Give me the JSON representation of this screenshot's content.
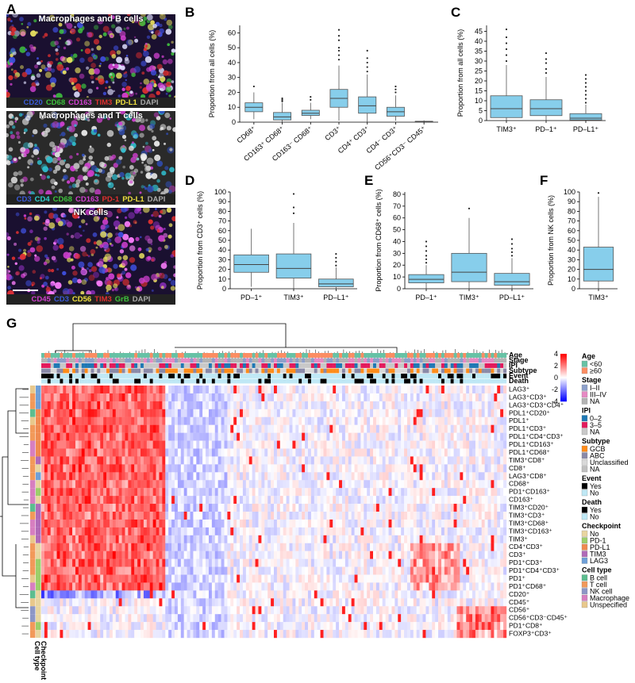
{
  "panel_letters": [
    "A",
    "B",
    "C",
    "D",
    "E",
    "F",
    "G"
  ],
  "micrographs": [
    {
      "title": "Macrophages and B cells",
      "legend": [
        {
          "t": "CD20",
          "c": "#3b5bd9"
        },
        {
          "t": "CD68",
          "c": "#3ec23e"
        },
        {
          "t": "CD163",
          "c": "#d03fd0"
        },
        {
          "t": "TIM3",
          "c": "#e03030"
        },
        {
          "t": "PD-L1",
          "c": "#f0e040"
        },
        {
          "t": "DAPI",
          "c": "#aaaaaa"
        }
      ]
    },
    {
      "title": "Macrophages and T cells",
      "legend": [
        {
          "t": "CD3",
          "c": "#3b5bd9"
        },
        {
          "t": "CD4",
          "c": "#30d0d0"
        },
        {
          "t": "CD68",
          "c": "#3ec23e"
        },
        {
          "t": "CD163",
          "c": "#d03fd0"
        },
        {
          "t": "PD-1",
          "c": "#e03030"
        },
        {
          "t": "PD-L1",
          "c": "#f0e040"
        },
        {
          "t": "DAPI",
          "c": "#aaaaaa"
        }
      ]
    },
    {
      "title": "NK cells",
      "legend": [
        {
          "t": "CD45",
          "c": "#d03fd0"
        },
        {
          "t": "CD3",
          "c": "#3b5bd9"
        },
        {
          "t": "CD56",
          "c": "#f0e040"
        },
        {
          "t": "TIM3",
          "c": "#e03030"
        },
        {
          "t": "GrB",
          "c": "#3ec23e"
        },
        {
          "t": "DAPI",
          "c": "#aaaaaa"
        }
      ]
    }
  ],
  "chart_data": [
    {
      "panel": "B",
      "type": "box",
      "ylabel": "Proportion from all cells (%)",
      "ylim": [
        0,
        65
      ],
      "yticks": [
        0,
        10,
        20,
        30,
        40,
        50,
        60
      ],
      "categories": [
        "CD68⁺",
        "CD163⁺ CD68⁺",
        "CD163⁻ CD68⁺",
        "CD3⁺",
        "CD4⁺ CD3⁺",
        "CD4⁻ CD3⁺",
        "CD56⁺CD3⁻ CD45⁺"
      ],
      "boxes": [
        {
          "min": 2,
          "q1": 7,
          "med": 10,
          "q3": 13,
          "max": 20,
          "out": [
            24
          ]
        },
        {
          "min": 0,
          "q1": 1.5,
          "med": 3.5,
          "q3": 6.5,
          "max": 13,
          "out": [
            14,
            15,
            16
          ]
        },
        {
          "min": 2,
          "q1": 4.5,
          "med": 6,
          "q3": 8,
          "max": 13,
          "out": [
            15,
            17
          ]
        },
        {
          "min": 1,
          "q1": 10,
          "med": 16,
          "q3": 22,
          "max": 38,
          "out": [
            42,
            45,
            48,
            50,
            55,
            58,
            62
          ]
        },
        {
          "min": 0,
          "q1": 6,
          "med": 11,
          "q3": 17,
          "max": 32,
          "out": [
            34,
            37,
            40,
            43,
            48
          ]
        },
        {
          "min": 1,
          "q1": 4,
          "med": 7,
          "q3": 10,
          "max": 18,
          "out": [
            20,
            22,
            24
          ]
        },
        {
          "min": 0,
          "q1": 0.1,
          "med": 0.3,
          "q3": 0.6,
          "max": 1.2,
          "out": []
        }
      ]
    },
    {
      "panel": "C",
      "type": "box",
      "ylabel": "Proportion from all cells (%)",
      "ylim": [
        0,
        48
      ],
      "yticks": [
        0,
        5,
        10,
        15,
        20,
        25,
        30,
        35,
        40,
        45
      ],
      "categories": [
        "TIM3⁺",
        "PD–1⁺",
        "PD–L1⁺"
      ],
      "boxes": [
        {
          "min": 0,
          "q1": 1.5,
          "med": 6,
          "q3": 12.5,
          "max": 28,
          "out": [
            30,
            33,
            36,
            39,
            42,
            46
          ]
        },
        {
          "min": 0,
          "q1": 2.5,
          "med": 6,
          "q3": 10.5,
          "max": 22,
          "out": [
            24,
            26,
            29,
            31,
            34
          ]
        },
        {
          "min": 0,
          "q1": 0.3,
          "med": 1.2,
          "q3": 3.5,
          "max": 8,
          "out": [
            9,
            11,
            13,
            15,
            17,
            19,
            21,
            23
          ]
        }
      ]
    },
    {
      "panel": "D",
      "type": "box",
      "ylabel": "Proportion from CD3⁺ cells (%)",
      "ylim": [
        0,
        100
      ],
      "yticks": [
        0,
        10,
        20,
        30,
        40,
        50,
        60,
        70,
        80,
        90,
        100
      ],
      "categories": [
        "PD–1⁺",
        "TIM3⁺",
        "PD–L1⁺"
      ],
      "boxes": [
        {
          "min": 2,
          "q1": 17,
          "med": 25,
          "q3": 35,
          "max": 62,
          "out": []
        },
        {
          "min": 0,
          "q1": 11,
          "med": 21,
          "q3": 36,
          "max": 68,
          "out": [
            78,
            84,
            98
          ]
        },
        {
          "min": 0,
          "q1": 2,
          "med": 5,
          "q3": 10,
          "max": 22,
          "out": [
            24,
            28,
            32,
            36
          ]
        }
      ]
    },
    {
      "panel": "E",
      "type": "box",
      "ylabel": "Proportion from CD68⁺ cells (%)",
      "ylim": [
        0,
        82
      ],
      "yticks": [
        0,
        10,
        20,
        30,
        40,
        50,
        60,
        70,
        80
      ],
      "categories": [
        "PD–1⁺",
        "TIM3⁺",
        "PD–L1⁺"
      ],
      "boxes": [
        {
          "min": 0,
          "q1": 5,
          "med": 8,
          "q3": 12,
          "max": 20,
          "out": [
            22,
            25,
            28,
            32,
            36,
            40
          ]
        },
        {
          "min": 0,
          "q1": 6,
          "med": 14,
          "q3": 30,
          "max": 60,
          "out": [
            68
          ]
        },
        {
          "min": 0,
          "q1": 3,
          "med": 6,
          "q3": 13,
          "max": 26,
          "out": [
            28,
            31,
            34,
            38,
            42
          ]
        }
      ]
    },
    {
      "panel": "F",
      "type": "box",
      "ylabel": "Proportion from NK cells (%)",
      "ylim": [
        0,
        100
      ],
      "yticks": [
        0,
        10,
        20,
        30,
        40,
        50,
        60,
        70,
        80,
        90,
        100
      ],
      "categories": [
        "TIM3⁺"
      ],
      "boxes": [
        {
          "min": 0,
          "q1": 8,
          "med": 20,
          "q3": 43,
          "max": 95,
          "out": [
            99
          ]
        }
      ]
    },
    {
      "panel": "G",
      "type": "heatmap",
      "annotation_rows": [
        "Age",
        "Stage",
        "IPI",
        "Subtype",
        "Event",
        "Death"
      ],
      "rows": [
        "LAG3⁺",
        "LAG3⁺CD3⁺",
        "LAG3⁺CD3⁺CD4⁺",
        "PDL1⁺CD20⁺",
        "PDL1⁺",
        "PDL1⁺CD3⁺",
        "PDL1⁺CD4⁺CD3⁺",
        "PDL1⁺CD163⁺",
        "PDL1⁺CD68⁺",
        "TIM3⁺CD8⁺",
        "CD8⁺",
        "LAG3⁺CD8⁺",
        "CD68⁺",
        "PD1⁺CD163⁺",
        "CD163⁺",
        "TIM3⁺CD20⁺",
        "TIM3⁺CD3⁺",
        "TIM3⁺CD68⁺",
        "TIM3⁺CD163⁺",
        "TIM3⁺",
        "CD4⁺CD3⁺",
        "CD3⁺",
        "PD1⁺CD3⁺",
        "PD1⁺CD4⁺CD3⁺",
        "PD1⁺",
        "PD1⁺CD68⁺",
        "CD20⁺",
        "CD45⁺",
        "CD56⁺",
        "CD56⁺CD3⁻CD45⁺",
        "PD1⁺CD8⁺",
        "FOXP3⁺CD3⁺"
      ],
      "row_checkpoint": [
        "LAG3",
        "LAG3",
        "LAG3",
        "PD-L1",
        "PD-L1",
        "PD-L1",
        "PD-L1",
        "PD-L1",
        "PD-L1",
        "TIM3",
        "No",
        "LAG3",
        "No",
        "PD-1",
        "No",
        "TIM3",
        "TIM3",
        "TIM3",
        "TIM3",
        "TIM3",
        "No",
        "No",
        "PD-1",
        "PD-1",
        "PD-1",
        "PD-1",
        "No",
        "No",
        "No",
        "No",
        "PD-1",
        "No"
      ],
      "row_celltype": [
        "Unspecified",
        "T cell",
        "T cell",
        "B cell",
        "Unspecified",
        "T cell",
        "T cell",
        "Macrophage",
        "Macrophage",
        "T cell",
        "T cell",
        "T cell",
        "Macrophage",
        "Macrophage",
        "Macrophage",
        "B cell",
        "T cell",
        "Macrophage",
        "Macrophage",
        "Unspecified",
        "T cell",
        "T cell",
        "T cell",
        "T cell",
        "Unspecified",
        "Macrophage",
        "B cell",
        "Unspecified",
        "NK cell",
        "NK cell",
        "T cell",
        "T cell"
      ],
      "colorbar": {
        "ticks": [
          4,
          2,
          0,
          -2,
          -4
        ],
        "low": "#2222dd",
        "mid": "#ffffff",
        "high": "#dd2222"
      },
      "bottom_labels": [
        "Cell type",
        "Checkpoint"
      ]
    }
  ],
  "legend_g": [
    {
      "title": "Age",
      "items": [
        {
          "t": "<60",
          "c": "#66c2a5"
        },
        {
          "t": "≥60",
          "c": "#fc8d62"
        }
      ]
    },
    {
      "title": "Stage",
      "items": [
        {
          "t": "I–II",
          "c": "#8da0cb"
        },
        {
          "t": "III–IV",
          "c": "#e78ac3"
        },
        {
          "t": "NA",
          "c": "#b3b3b3"
        }
      ]
    },
    {
      "title": "IPI",
      "items": [
        {
          "t": "0–2",
          "c": "#1f78b4"
        },
        {
          "t": "3–5",
          "c": "#e31a5c"
        },
        {
          "t": "NA",
          "c": "#c8c8c8"
        }
      ]
    },
    {
      "title": "Subtype",
      "items": [
        {
          "t": "GCB",
          "c": "#ff8c1a"
        },
        {
          "t": "ABC",
          "c": "#8a8aa8"
        },
        {
          "t": "Unclassified",
          "c": "#d9d9d9"
        },
        {
          "t": "NA",
          "c": "#c0c0c0"
        }
      ]
    },
    {
      "title": "Event",
      "items": [
        {
          "t": "Yes",
          "c": "#000000"
        },
        {
          "t": "No",
          "c": "#bfe8f5"
        }
      ]
    },
    {
      "title": "Death",
      "items": [
        {
          "t": "Yes",
          "c": "#000000"
        },
        {
          "t": "No",
          "c": "#bfe8f5"
        }
      ]
    },
    {
      "title": "Checkpoint",
      "items": [
        {
          "t": "No",
          "c": "#e8d5a0"
        },
        {
          "t": "PD-1",
          "c": "#9ccf6a"
        },
        {
          "t": "PD-L1",
          "c": "#f08a50"
        },
        {
          "t": "TIM3",
          "c": "#b06ab8"
        },
        {
          "t": "LAG3",
          "c": "#6fa0d8"
        }
      ]
    },
    {
      "title": "Cell type",
      "items": [
        {
          "t": "B cell",
          "c": "#5cbd8f"
        },
        {
          "t": "T cell",
          "c": "#f2995a"
        },
        {
          "t": "NK cell",
          "c": "#8c96c6"
        },
        {
          "t": "Macrophage",
          "c": "#d77fc0"
        },
        {
          "t": "Unspecified",
          "c": "#e8c88c"
        }
      ]
    }
  ]
}
